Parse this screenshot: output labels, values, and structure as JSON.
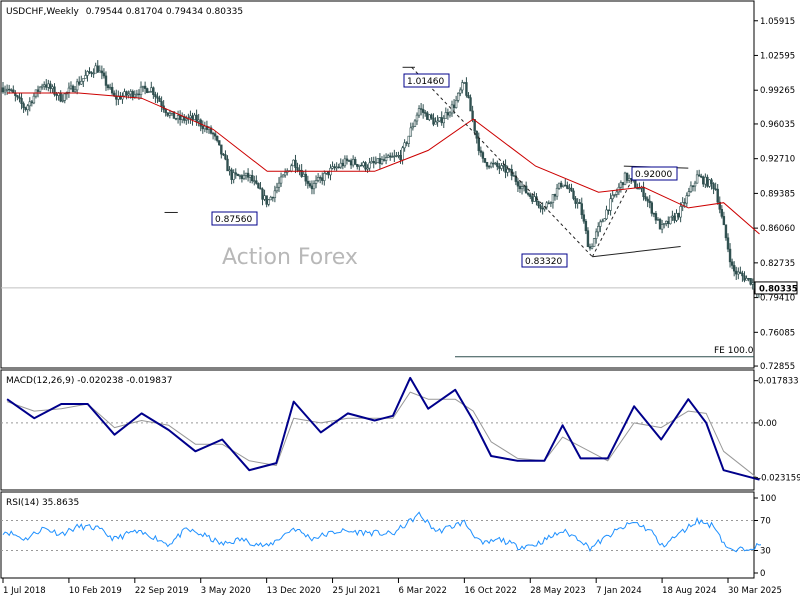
{
  "header": {
    "symbol_tf": "USDCHF,Weekly",
    "ohlc": "0.79544 0.81704 0.79434 0.80335"
  },
  "watermark": "Action Forex",
  "chart_data": [
    {
      "type": "candlestick",
      "panel": "price",
      "title": "USDCHF,Weekly",
      "y_ticks": [
        "1.05915",
        "1.02595",
        "0.99265",
        "0.96035",
        "0.92710",
        "0.89385",
        "0.86060",
        "0.82735",
        "0.79410",
        "0.76085",
        "0.72855"
      ],
      "ylim": [
        0.7286,
        1.0752
      ],
      "last_price": "0.80335",
      "fe_label": "FE 100.0",
      "fe_level": 0.7375,
      "annotations": [
        {
          "text": "1.01460",
          "value": 1.0146,
          "date": "2022-04"
        },
        {
          "text": "0.87560",
          "value": 0.8756,
          "date": "2020-01"
        },
        {
          "text": "0.83320",
          "value": 0.8332,
          "date": "2023-12"
        },
        {
          "text": "0.92000",
          "value": 0.92,
          "date": "2024-05"
        }
      ],
      "close_path": [
        [
          "2018-07",
          0.995
        ],
        [
          "2018-09",
          0.975
        ],
        [
          "2018-11",
          1.0
        ],
        [
          "2019-01",
          0.985
        ],
        [
          "2019-03",
          1.0
        ],
        [
          "2019-05",
          1.015
        ],
        [
          "2019-07",
          0.985
        ],
        [
          "2019-09",
          0.99
        ],
        [
          "2019-11",
          0.995
        ],
        [
          "2020-01",
          0.97
        ],
        [
          "2020-02",
          0.965
        ],
        [
          "2020-04",
          0.965
        ],
        [
          "2020-06",
          0.95
        ],
        [
          "2020-08",
          0.91
        ],
        [
          "2020-10",
          0.91
        ],
        [
          "2020-12",
          0.885
        ],
        [
          "2021-03",
          0.925
        ],
        [
          "2021-05",
          0.9
        ],
        [
          "2021-07",
          0.915
        ],
        [
          "2021-09",
          0.925
        ],
        [
          "2021-11",
          0.92
        ],
        [
          "2022-01",
          0.925
        ],
        [
          "2022-03",
          0.93
        ],
        [
          "2022-05",
          0.975
        ],
        [
          "2022-07",
          0.96
        ],
        [
          "2022-09",
          0.98
        ],
        [
          "2022-10",
          1.0
        ],
        [
          "2022-12",
          0.925
        ],
        [
          "2023-03",
          0.915
        ],
        [
          "2023-05",
          0.895
        ],
        [
          "2023-07",
          0.88
        ],
        [
          "2023-09",
          0.905
        ],
        [
          "2023-11",
          0.88
        ],
        [
          "2023-12",
          0.84
        ],
        [
          "2024-02",
          0.88
        ],
        [
          "2024-04",
          0.91
        ],
        [
          "2024-06",
          0.895
        ],
        [
          "2024-08",
          0.86
        ],
        [
          "2024-10",
          0.875
        ],
        [
          "2024-12",
          0.91
        ],
        [
          "2025-02",
          0.9
        ],
        [
          "2025-04",
          0.82
        ],
        [
          "2025-06",
          0.81
        ],
        [
          "2025-07",
          0.8
        ]
      ],
      "series": [
        {
          "name": "MA",
          "color": "#cc0000",
          "values": [
            [
              "2018-07",
              0.99
            ],
            [
              "2019-03",
              0.99
            ],
            [
              "2019-10",
              0.985
            ],
            [
              "2020-06",
              0.955
            ],
            [
              "2020-12",
              0.915
            ],
            [
              "2021-06",
              0.915
            ],
            [
              "2021-12",
              0.915
            ],
            [
              "2022-06",
              0.935
            ],
            [
              "2022-11",
              0.965
            ],
            [
              "2023-06",
              0.92
            ],
            [
              "2024-01",
              0.895
            ],
            [
              "2024-06",
              0.9
            ],
            [
              "2024-11",
              0.88
            ],
            [
              "2025-03",
              0.885
            ],
            [
              "2025-07",
              0.855
            ]
          ]
        }
      ]
    },
    {
      "type": "line",
      "panel": "macd",
      "title": "MACD(12,26,9) -0.020238 -0.019837",
      "y_ticks": [
        "0.017833",
        "0.00",
        "-0.023159"
      ],
      "ylim": [
        -0.0275,
        0.0215
      ],
      "series": [
        {
          "name": "MACD",
          "color": "#00008b",
          "values": [
            [
              "2018-07",
              0.01
            ],
            [
              "2018-10",
              0.002
            ],
            [
              "2019-01",
              0.008
            ],
            [
              "2019-04",
              0.008
            ],
            [
              "2019-07",
              -0.005
            ],
            [
              "2019-10",
              0.004
            ],
            [
              "2020-01",
              -0.003
            ],
            [
              "2020-04",
              -0.012
            ],
            [
              "2020-07",
              -0.007
            ],
            [
              "2020-10",
              -0.02
            ],
            [
              "2021-01",
              -0.017
            ],
            [
              "2021-03",
              0.009
            ],
            [
              "2021-06",
              -0.004
            ],
            [
              "2021-09",
              0.004
            ],
            [
              "2021-12",
              0.001
            ],
            [
              "2022-02",
              0.003
            ],
            [
              "2022-04",
              0.019
            ],
            [
              "2022-06",
              0.006
            ],
            [
              "2022-09",
              0.014
            ],
            [
              "2022-11",
              0.001
            ],
            [
              "2023-01",
              -0.014
            ],
            [
              "2023-04",
              -0.016
            ],
            [
              "2023-07",
              -0.016
            ],
            [
              "2023-09",
              -0.001
            ],
            [
              "2023-11",
              -0.015
            ],
            [
              "2024-02",
              -0.015
            ],
            [
              "2024-05",
              0.007
            ],
            [
              "2024-08",
              -0.007
            ],
            [
              "2024-11",
              0.01
            ],
            [
              "2025-01",
              0.0
            ],
            [
              "2025-03",
              -0.02
            ],
            [
              "2025-07",
              -0.024
            ]
          ]
        },
        {
          "name": "Signal",
          "color": "#999999",
          "values": [
            [
              "2018-07",
              0.009
            ],
            [
              "2018-10",
              0.005
            ],
            [
              "2019-01",
              0.006
            ],
            [
              "2019-04",
              0.008
            ],
            [
              "2019-07",
              -0.002
            ],
            [
              "2019-10",
              0.001
            ],
            [
              "2020-01",
              -0.001
            ],
            [
              "2020-04",
              -0.009
            ],
            [
              "2020-07",
              -0.009
            ],
            [
              "2020-10",
              -0.016
            ],
            [
              "2021-01",
              -0.018
            ],
            [
              "2021-03",
              0.002
            ],
            [
              "2021-06",
              0.0
            ],
            [
              "2021-09",
              0.002
            ],
            [
              "2021-12",
              0.002
            ],
            [
              "2022-02",
              0.002
            ],
            [
              "2022-04",
              0.013
            ],
            [
              "2022-06",
              0.01
            ],
            [
              "2022-09",
              0.01
            ],
            [
              "2022-11",
              0.005
            ],
            [
              "2023-01",
              -0.008
            ],
            [
              "2023-04",
              -0.015
            ],
            [
              "2023-07",
              -0.016
            ],
            [
              "2023-09",
              -0.006
            ],
            [
              "2023-11",
              -0.01
            ],
            [
              "2024-02",
              -0.016
            ],
            [
              "2024-05",
              0.0
            ],
            [
              "2024-08",
              -0.002
            ],
            [
              "2024-11",
              0.005
            ],
            [
              "2025-01",
              0.004
            ],
            [
              "2025-03",
              -0.012
            ],
            [
              "2025-07",
              -0.024
            ]
          ]
        }
      ]
    },
    {
      "type": "line",
      "panel": "rsi",
      "title": "RSI(14) 35.8635",
      "y_ticks": [
        "100",
        "70",
        "30",
        "0"
      ],
      "ylim": [
        0,
        100
      ],
      "series": [
        {
          "name": "RSI",
          "color": "#1e90ff",
          "values": [
            [
              "2018-07",
              55
            ],
            [
              "2018-09",
              45
            ],
            [
              "2018-11",
              60
            ],
            [
              "2019-01",
              52
            ],
            [
              "2019-03",
              62
            ],
            [
              "2019-05",
              60
            ],
            [
              "2019-07",
              45
            ],
            [
              "2019-09",
              55
            ],
            [
              "2019-11",
              50
            ],
            [
              "2020-01",
              38
            ],
            [
              "2020-03",
              58
            ],
            [
              "2020-05",
              50
            ],
            [
              "2020-07",
              38
            ],
            [
              "2020-09",
              45
            ],
            [
              "2020-12",
              35
            ],
            [
              "2021-03",
              60
            ],
            [
              "2021-05",
              46
            ],
            [
              "2021-08",
              56
            ],
            [
              "2021-11",
              54
            ],
            [
              "2022-02",
              52
            ],
            [
              "2022-05",
              78
            ],
            [
              "2022-07",
              55
            ],
            [
              "2022-10",
              68
            ],
            [
              "2022-12",
              38
            ],
            [
              "2023-02",
              45
            ],
            [
              "2023-04",
              35
            ],
            [
              "2023-06",
              38
            ],
            [
              "2023-09",
              56
            ],
            [
              "2023-11",
              45
            ],
            [
              "2023-12",
              33
            ],
            [
              "2024-03",
              56
            ],
            [
              "2024-05",
              68
            ],
            [
              "2024-07",
              55
            ],
            [
              "2024-08",
              35
            ],
            [
              "2024-10",
              52
            ],
            [
              "2024-12",
              70
            ],
            [
              "2025-02",
              62
            ],
            [
              "2025-03",
              40
            ],
            [
              "2025-04",
              28
            ],
            [
              "2025-06",
              35
            ],
            [
              "2025-07",
              36
            ]
          ]
        }
      ]
    }
  ],
  "x_axis": {
    "labels": [
      "1 Jul 2018",
      "10 Feb 2019",
      "22 Sep 2019",
      "3 May 2020",
      "13 Dec 2020",
      "25 Jul 2021",
      "6 Mar 2022",
      "16 Oct 2022",
      "28 May 2023",
      "7 Jan 2024",
      "18 Aug 2024",
      "30 Mar 2025"
    ],
    "dates": [
      "2018-07-01",
      "2019-02-10",
      "2019-09-22",
      "2020-05-03",
      "2020-12-13",
      "2021-07-25",
      "2022-03-06",
      "2022-10-16",
      "2023-05-28",
      "2024-01-07",
      "2024-08-18",
      "2025-03-30"
    ]
  },
  "colors": {
    "candle": "#2f4f4f",
    "ma": "#cc0000",
    "macd": "#00008b",
    "signal": "#999999",
    "rsi": "#1e90ff",
    "label_border": "#00008b",
    "grid": "#c0c0c0"
  }
}
